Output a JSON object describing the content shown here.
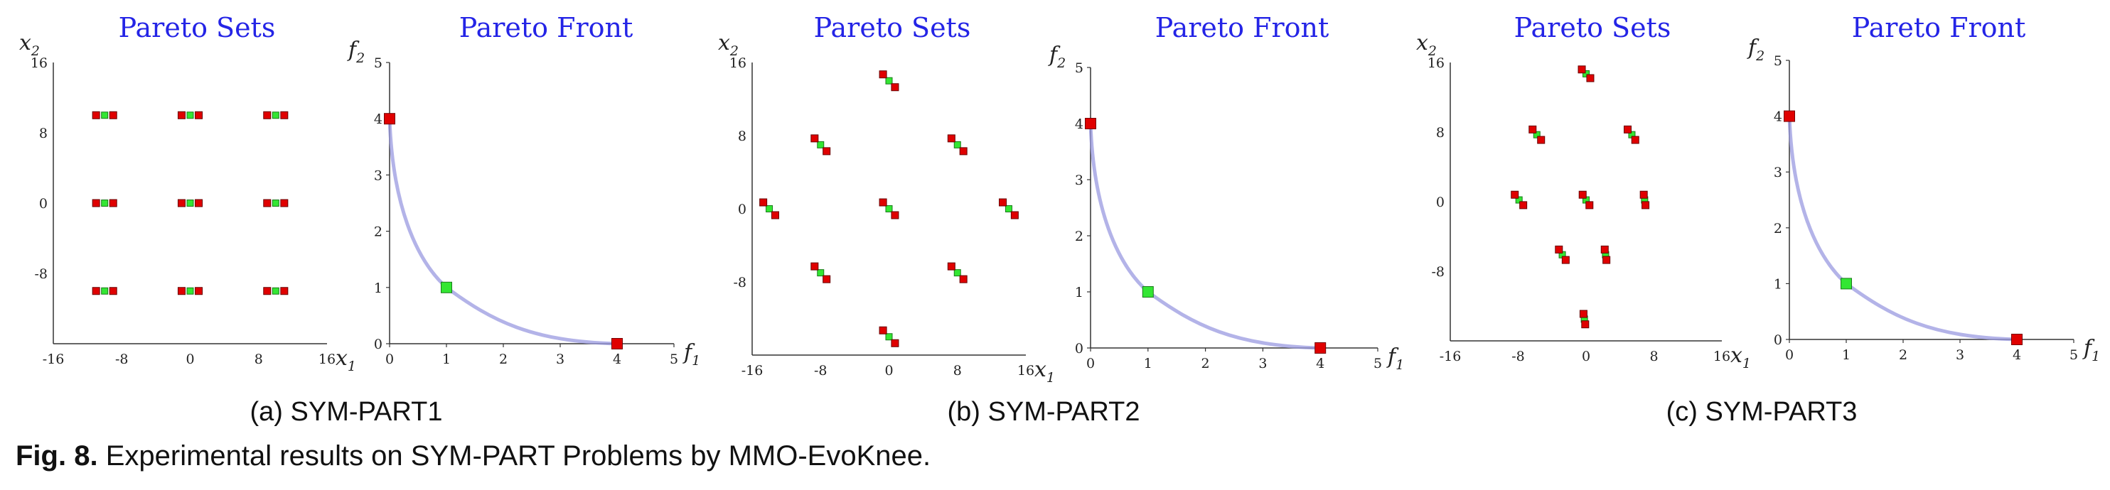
{
  "caption": {
    "label": "Fig. 8.",
    "text": "Experimental results on SYM-PART Problems by MMO-EvoKnee."
  },
  "colors": {
    "title": "#2424e6",
    "endpoint_marker": "#e00000",
    "knee_marker": "#33e633",
    "front_curve": "#9a9ae0"
  },
  "chart_data": [
    {
      "type": "scatter",
      "title": "Pareto Sets",
      "xlabel": "x1",
      "ylabel": "x2",
      "xlim": [
        -16,
        16
      ],
      "ylim": [
        -16,
        16
      ],
      "xticks": [
        "-16",
        "-8",
        "0",
        "8",
        "16"
      ],
      "yticks": [
        "16",
        "8",
        "0",
        "-8"
      ],
      "clusters": [
        {
          "points": [
            {
              "x": -11,
              "y": 10,
              "c": "r"
            },
            {
              "x": -10,
              "y": 10,
              "c": "g"
            },
            {
              "x": -9,
              "y": 10,
              "c": "r"
            }
          ]
        },
        {
          "points": [
            {
              "x": -1,
              "y": 10,
              "c": "r"
            },
            {
              "x": 0,
              "y": 10,
              "c": "g"
            },
            {
              "x": 1,
              "y": 10,
              "c": "r"
            }
          ]
        },
        {
          "points": [
            {
              "x": 9,
              "y": 10,
              "c": "r"
            },
            {
              "x": 10,
              "y": 10,
              "c": "g"
            },
            {
              "x": 11,
              "y": 10,
              "c": "r"
            }
          ]
        },
        {
          "points": [
            {
              "x": -11,
              "y": 0,
              "c": "r"
            },
            {
              "x": -10,
              "y": 0,
              "c": "g"
            },
            {
              "x": -9,
              "y": 0,
              "c": "r"
            }
          ]
        },
        {
          "points": [
            {
              "x": -1,
              "y": 0,
              "c": "r"
            },
            {
              "x": 0,
              "y": 0,
              "c": "g"
            },
            {
              "x": 1,
              "y": 0,
              "c": "r"
            }
          ]
        },
        {
          "points": [
            {
              "x": 9,
              "y": 0,
              "c": "r"
            },
            {
              "x": 10,
              "y": 0,
              "c": "g"
            },
            {
              "x": 11,
              "y": 0,
              "c": "r"
            }
          ]
        },
        {
          "points": [
            {
              "x": -11,
              "y": -10,
              "c": "r"
            },
            {
              "x": -10,
              "y": -10,
              "c": "g"
            },
            {
              "x": -9,
              "y": -10,
              "c": "r"
            }
          ]
        },
        {
          "points": [
            {
              "x": -1,
              "y": -10,
              "c": "r"
            },
            {
              "x": 0,
              "y": -10,
              "c": "g"
            },
            {
              "x": 1,
              "y": -10,
              "c": "r"
            }
          ]
        },
        {
          "points": [
            {
              "x": 9,
              "y": -10,
              "c": "r"
            },
            {
              "x": 10,
              "y": -10,
              "c": "g"
            },
            {
              "x": 11,
              "y": -10,
              "c": "r"
            }
          ]
        }
      ]
    },
    {
      "type": "line",
      "title": "Pareto Front",
      "xlabel": "f1",
      "ylabel": "f2",
      "xlim": [
        0,
        5
      ],
      "ylim": [
        0,
        5
      ],
      "xticks": [
        "0",
        "1",
        "2",
        "3",
        "4",
        "5"
      ],
      "yticks": [
        "0",
        "1",
        "2",
        "3",
        "4",
        "5"
      ],
      "curve": {
        "from": [
          0,
          4
        ],
        "knee": [
          1,
          1
        ],
        "to": [
          4,
          0
        ]
      },
      "points": [
        {
          "x": 0,
          "y": 4,
          "c": "r"
        },
        {
          "x": 1,
          "y": 1,
          "c": "g"
        },
        {
          "x": 4,
          "y": 0,
          "c": "r"
        }
      ]
    },
    {
      "type": "scatter",
      "title": "Pareto Sets",
      "xlabel": "x1",
      "ylabel": "x2",
      "xlim": [
        -16,
        16
      ],
      "ylim": [
        -16,
        16
      ],
      "xticks": [
        "-16",
        "-8",
        "0",
        "8",
        "16"
      ],
      "yticks": [
        "16",
        "8",
        "0",
        "-8"
      ],
      "clusters": [
        {
          "points": [
            {
              "x": -0.7,
              "y": 14.7,
              "c": "r"
            },
            {
              "x": 0,
              "y": 14,
              "c": "g"
            },
            {
              "x": 0.7,
              "y": 13.3,
              "c": "r"
            }
          ]
        },
        {
          "points": [
            {
              "x": -8.7,
              "y": 7.7,
              "c": "r"
            },
            {
              "x": -8,
              "y": 7,
              "c": "g"
            },
            {
              "x": -7.3,
              "y": 6.3,
              "c": "r"
            }
          ]
        },
        {
          "points": [
            {
              "x": 7.3,
              "y": 7.7,
              "c": "r"
            },
            {
              "x": 8,
              "y": 7,
              "c": "g"
            },
            {
              "x": 8.7,
              "y": 6.3,
              "c": "r"
            }
          ]
        },
        {
          "points": [
            {
              "x": -14.7,
              "y": 0.7,
              "c": "r"
            },
            {
              "x": -14,
              "y": 0,
              "c": "g"
            },
            {
              "x": -13.3,
              "y": -0.7,
              "c": "r"
            }
          ]
        },
        {
          "points": [
            {
              "x": -0.7,
              "y": 0.7,
              "c": "r"
            },
            {
              "x": 0,
              "y": 0,
              "c": "g"
            },
            {
              "x": 0.7,
              "y": -0.7,
              "c": "r"
            }
          ]
        },
        {
          "points": [
            {
              "x": 13.3,
              "y": 0.7,
              "c": "r"
            },
            {
              "x": 14,
              "y": 0,
              "c": "g"
            },
            {
              "x": 14.7,
              "y": -0.7,
              "c": "r"
            }
          ]
        },
        {
          "points": [
            {
              "x": -8.7,
              "y": -6.3,
              "c": "r"
            },
            {
              "x": -8,
              "y": -7,
              "c": "g"
            },
            {
              "x": -7.3,
              "y": -7.7,
              "c": "r"
            }
          ]
        },
        {
          "points": [
            {
              "x": 7.3,
              "y": -6.3,
              "c": "r"
            },
            {
              "x": 8,
              "y": -7,
              "c": "g"
            },
            {
              "x": 8.7,
              "y": -7.7,
              "c": "r"
            }
          ]
        },
        {
          "points": [
            {
              "x": -0.7,
              "y": -13.3,
              "c": "r"
            },
            {
              "x": 0,
              "y": -14,
              "c": "g"
            },
            {
              "x": 0.7,
              "y": -14.7,
              "c": "r"
            }
          ]
        }
      ]
    },
    {
      "type": "line",
      "title": "Pareto Front",
      "xlabel": "f1",
      "ylabel": "f2",
      "xlim": [
        0,
        5
      ],
      "ylim": [
        0,
        5
      ],
      "xticks": [
        "0",
        "1",
        "2",
        "3",
        "4",
        "5"
      ],
      "yticks": [
        "0",
        "1",
        "2",
        "3",
        "4",
        "5"
      ],
      "curve": {
        "from": [
          0,
          4
        ],
        "knee": [
          1,
          1
        ],
        "to": [
          4,
          0
        ]
      },
      "points": [
        {
          "x": 0,
          "y": 4,
          "c": "r"
        },
        {
          "x": 1,
          "y": 1,
          "c": "g"
        },
        {
          "x": 4,
          "y": 0,
          "c": "r"
        }
      ]
    },
    {
      "type": "scatter",
      "title": "Pareto Sets",
      "xlabel": "x1",
      "ylabel": "x2",
      "xlim": [
        -16,
        16
      ],
      "ylim": [
        -16,
        16
      ],
      "xticks": [
        "-16",
        "-8",
        "0",
        "8",
        "16"
      ],
      "yticks": [
        "16",
        "8",
        "0",
        "-8"
      ],
      "clusters": [
        {
          "points": [
            {
              "x": -0.5,
              "y": 15.2,
              "c": "r"
            },
            {
              "x": 0,
              "y": 14.7,
              "c": "g"
            },
            {
              "x": 0.5,
              "y": 14.2,
              "c": "r"
            }
          ]
        },
        {
          "points": [
            {
              "x": -6.3,
              "y": 8.3,
              "c": "r"
            },
            {
              "x": -5.8,
              "y": 7.7,
              "c": "g"
            },
            {
              "x": -5.3,
              "y": 7.1,
              "c": "r"
            }
          ]
        },
        {
          "points": [
            {
              "x": 4.9,
              "y": 8.3,
              "c": "r"
            },
            {
              "x": 5.4,
              "y": 7.7,
              "c": "g"
            },
            {
              "x": 5.8,
              "y": 7.1,
              "c": "r"
            }
          ]
        },
        {
          "points": [
            {
              "x": -8.4,
              "y": 0.8,
              "c": "r"
            },
            {
              "x": -7.9,
              "y": 0.2,
              "c": "g"
            },
            {
              "x": -7.4,
              "y": -0.4,
              "c": "r"
            }
          ]
        },
        {
          "points": [
            {
              "x": -0.4,
              "y": 0.8,
              "c": "r"
            },
            {
              "x": 0,
              "y": 0.2,
              "c": "g"
            },
            {
              "x": 0.4,
              "y": -0.4,
              "c": "r"
            }
          ]
        },
        {
          "points": [
            {
              "x": 6.8,
              "y": 0.8,
              "c": "r"
            },
            {
              "x": 6.9,
              "y": 0.2,
              "c": "g"
            },
            {
              "x": 7,
              "y": -0.4,
              "c": "r"
            }
          ]
        },
        {
          "points": [
            {
              "x": -3.2,
              "y": -5.5,
              "c": "r"
            },
            {
              "x": -2.8,
              "y": -6.1,
              "c": "g"
            },
            {
              "x": -2.4,
              "y": -6.7,
              "c": "r"
            }
          ]
        },
        {
          "points": [
            {
              "x": 2.2,
              "y": -5.5,
              "c": "r"
            },
            {
              "x": 2.3,
              "y": -6.1,
              "c": "g"
            },
            {
              "x": 2.4,
              "y": -6.7,
              "c": "r"
            }
          ]
        },
        {
          "points": [
            {
              "x": -0.3,
              "y": -12.9,
              "c": "r"
            },
            {
              "x": -0.2,
              "y": -13.5,
              "c": "g"
            },
            {
              "x": -0.1,
              "y": -14.1,
              "c": "r"
            }
          ]
        }
      ]
    },
    {
      "type": "line",
      "title": "Pareto Front",
      "xlabel": "f1",
      "ylabel": "f2",
      "xlim": [
        0,
        5
      ],
      "ylim": [
        0,
        5
      ],
      "xticks": [
        "0",
        "1",
        "2",
        "3",
        "4",
        "5"
      ],
      "yticks": [
        "0",
        "1",
        "2",
        "3",
        "4",
        "5"
      ],
      "curve": {
        "from": [
          0,
          4
        ],
        "knee": [
          1,
          1
        ],
        "to": [
          4,
          0
        ]
      },
      "points": [
        {
          "x": 0,
          "y": 4,
          "c": "r"
        },
        {
          "x": 1,
          "y": 1,
          "c": "g"
        },
        {
          "x": 4,
          "y": 0,
          "c": "r"
        }
      ]
    }
  ],
  "subcaptions": [
    "(a) SYM-PART1",
    "(b) SYM-PART2",
    "(c) SYM-PART3"
  ]
}
